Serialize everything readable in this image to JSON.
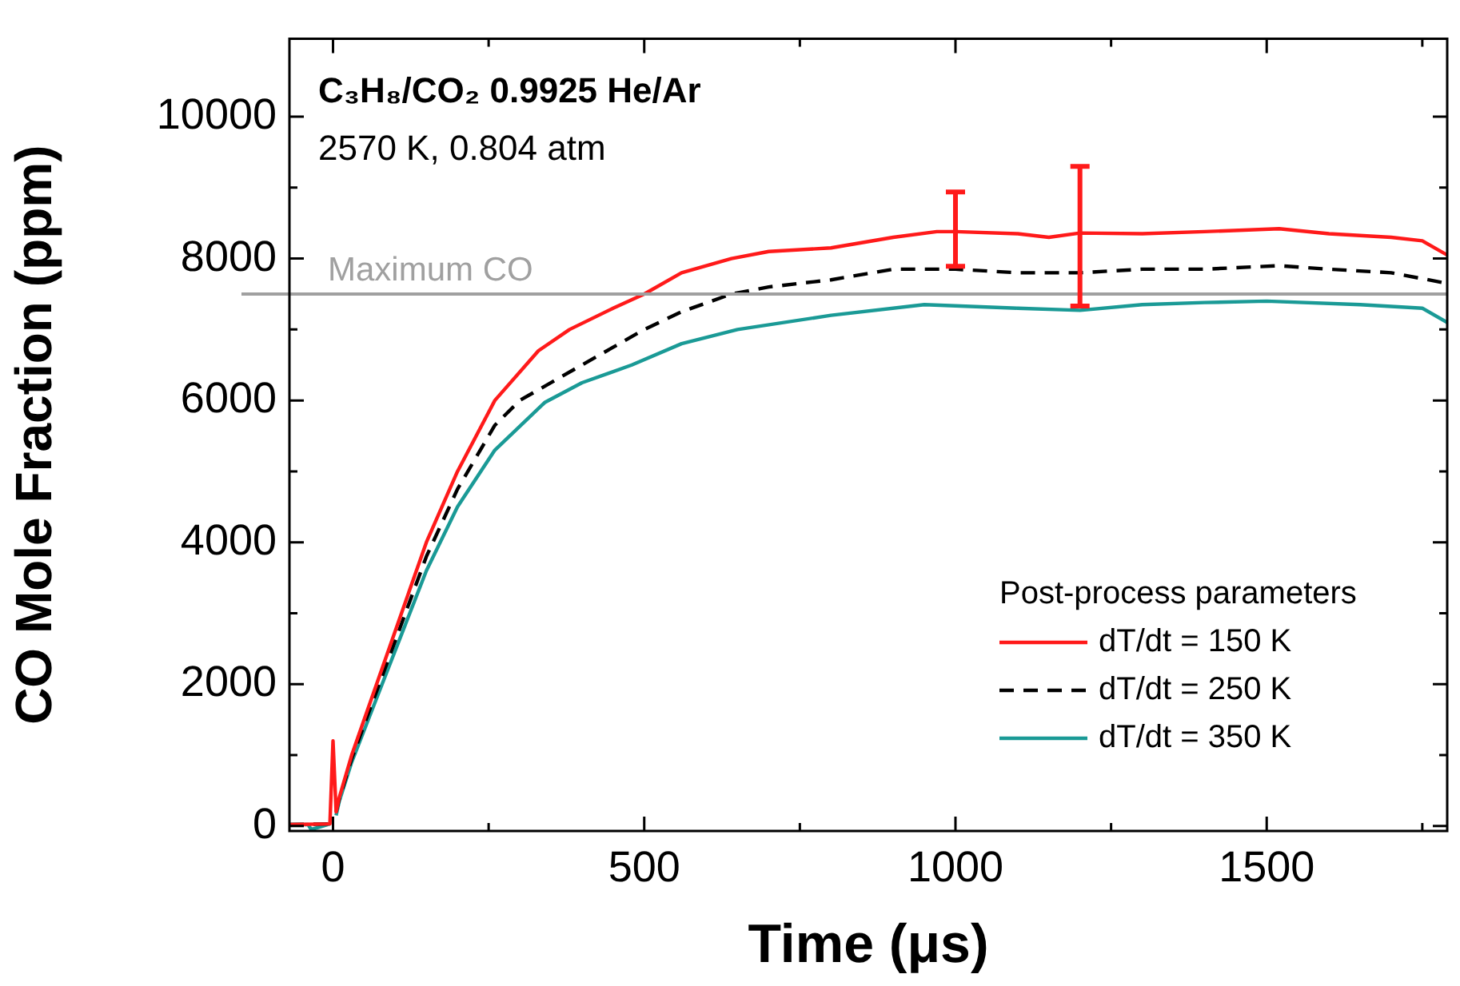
{
  "chart_data": {
    "type": "line",
    "xlabel": "Time (μs)",
    "ylabel": "CO Mole Fraction (ppm)",
    "legend_title": "Post-process parameters",
    "legend": "bottom right",
    "marker": "none",
    "grid": false,
    "annotations": [
      "C₃H₈/CO₂ 0.9925 He/Ar",
      "2570 K, 0.804 atm"
    ],
    "ref_lines": [
      {
        "axis": "y",
        "value": 7500,
        "label": "Maximum CO",
        "color": "#a0a0a0"
      }
    ],
    "xlim": [
      -70,
      1790
    ],
    "ylim": [
      -70,
      11100
    ],
    "xticks": [
      0,
      {
        "value": 250,
        "label": null
      },
      500,
      {
        "value": 750,
        "label": null
      },
      1000,
      {
        "value": 1250,
        "label": null
      },
      1500,
      {
        "value": 1750,
        "label": null
      }
    ],
    "yticks": [
      0,
      {
        "value": 1000,
        "label": null
      },
      2000,
      {
        "value": 3000,
        "label": null
      },
      4000,
      {
        "value": 5000,
        "label": null
      },
      6000,
      {
        "value": 7000,
        "label": null
      },
      8000,
      {
        "value": 9000,
        "label": null
      },
      10000
    ],
    "series": [
      {
        "name": "dT/dt = 150 K",
        "color": "#ff1a1a",
        "line_style": "solid",
        "x": [
          -70,
          -5,
          0,
          5,
          10,
          30,
          70,
          110,
          150,
          200,
          260,
          330,
          380,
          450,
          500,
          560,
          640,
          700,
          800,
          900,
          970,
          1000,
          1100,
          1150,
          1200,
          1300,
          1400,
          1520,
          1600,
          1700,
          1750,
          1790
        ],
        "values": [
          20,
          30,
          1200,
          200,
          400,
          1000,
          2000,
          3000,
          4000,
          5000,
          6000,
          6700,
          7000,
          7300,
          7500,
          7800,
          8000,
          8100,
          8150,
          8300,
          8380,
          8380,
          8350,
          8300,
          8360,
          8350,
          8380,
          8420,
          8350,
          8300,
          8250,
          8050
        ],
        "errors": [
          null,
          null,
          null,
          null,
          null,
          null,
          null,
          null,
          null,
          null,
          null,
          null,
          null,
          null,
          null,
          null,
          null,
          null,
          null,
          null,
          null,
          [
            7890,
            8940
          ],
          null,
          null,
          [
            7330,
            9300
          ],
          null,
          null,
          null,
          null,
          null,
          null,
          null
        ]
      },
      {
        "name": "dT/dt = 250 K",
        "color": "#000000",
        "line_style": "dashed",
        "x": [
          -70,
          -5,
          0,
          5,
          10,
          30,
          70,
          110,
          150,
          200,
          260,
          300,
          400,
          500,
          560,
          640,
          700,
          800,
          900,
          1000,
          1100,
          1200,
          1300,
          1400,
          1520,
          1600,
          1700,
          1790
        ],
        "values": [
          20,
          30,
          null,
          200,
          380,
          950,
          1900,
          2850,
          3800,
          4750,
          5650,
          6000,
          6500,
          7000,
          7250,
          7500,
          7600,
          7700,
          7850,
          7850,
          7800,
          7800,
          7850,
          7850,
          7900,
          7850,
          7800,
          7650
        ]
      },
      {
        "name": "dT/dt = 350 K",
        "color": "#1a9a96",
        "line_style": "solid",
        "x": [
          -70,
          -40,
          -35,
          -5,
          0,
          5,
          10,
          30,
          70,
          110,
          150,
          200,
          260,
          340,
          400,
          480,
          560,
          650,
          800,
          950,
          1100,
          1200,
          1300,
          1400,
          1500,
          1650,
          1750,
          1790
        ],
        "values": [
          20,
          20,
          -50,
          30,
          null,
          150,
          350,
          900,
          1800,
          2700,
          3600,
          4500,
          5300,
          5970,
          6250,
          6500,
          6800,
          7000,
          7200,
          7350,
          7300,
          7270,
          7350,
          7380,
          7400,
          7350,
          7300,
          7100
        ]
      }
    ]
  }
}
